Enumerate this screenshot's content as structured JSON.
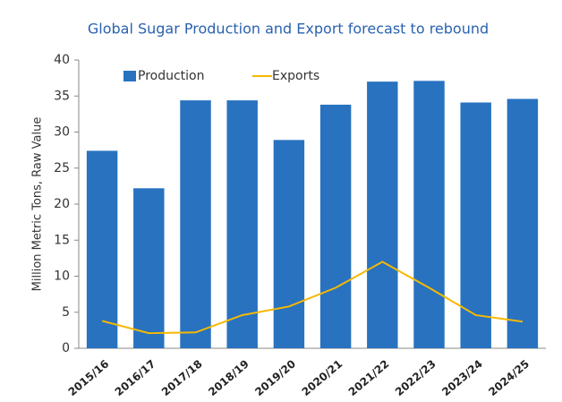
{
  "chart_data": {
    "type": "bar",
    "title": "Global Sugar Production and Export forecast to rebound",
    "y_label": "Million Metric Tons, Raw Value",
    "categories": [
      "2015/16",
      "2016/17",
      "2017/18",
      "2018/19",
      "2019/20",
      "2020/21",
      "2021/22",
      "2022/23",
      "2023/24",
      "2024/25"
    ],
    "series": [
      {
        "name": "Production",
        "type": "bar",
        "color": "#2872c0",
        "values": [
          27.4,
          22.2,
          34.4,
          34.4,
          28.9,
          33.8,
          37.0,
          37.1,
          34.1,
          34.6
        ]
      },
      {
        "name": "Exports",
        "type": "line",
        "color": "#f6b800",
        "values": [
          3.8,
          2.1,
          2.2,
          4.6,
          5.8,
          8.4,
          12.0,
          8.4,
          4.6,
          3.7
        ]
      }
    ],
    "ylim": [
      0,
      40
    ],
    "yticks": [
      0,
      5,
      10,
      15,
      20,
      25,
      30,
      35,
      40
    ],
    "grid": false,
    "legend": "top-left"
  }
}
